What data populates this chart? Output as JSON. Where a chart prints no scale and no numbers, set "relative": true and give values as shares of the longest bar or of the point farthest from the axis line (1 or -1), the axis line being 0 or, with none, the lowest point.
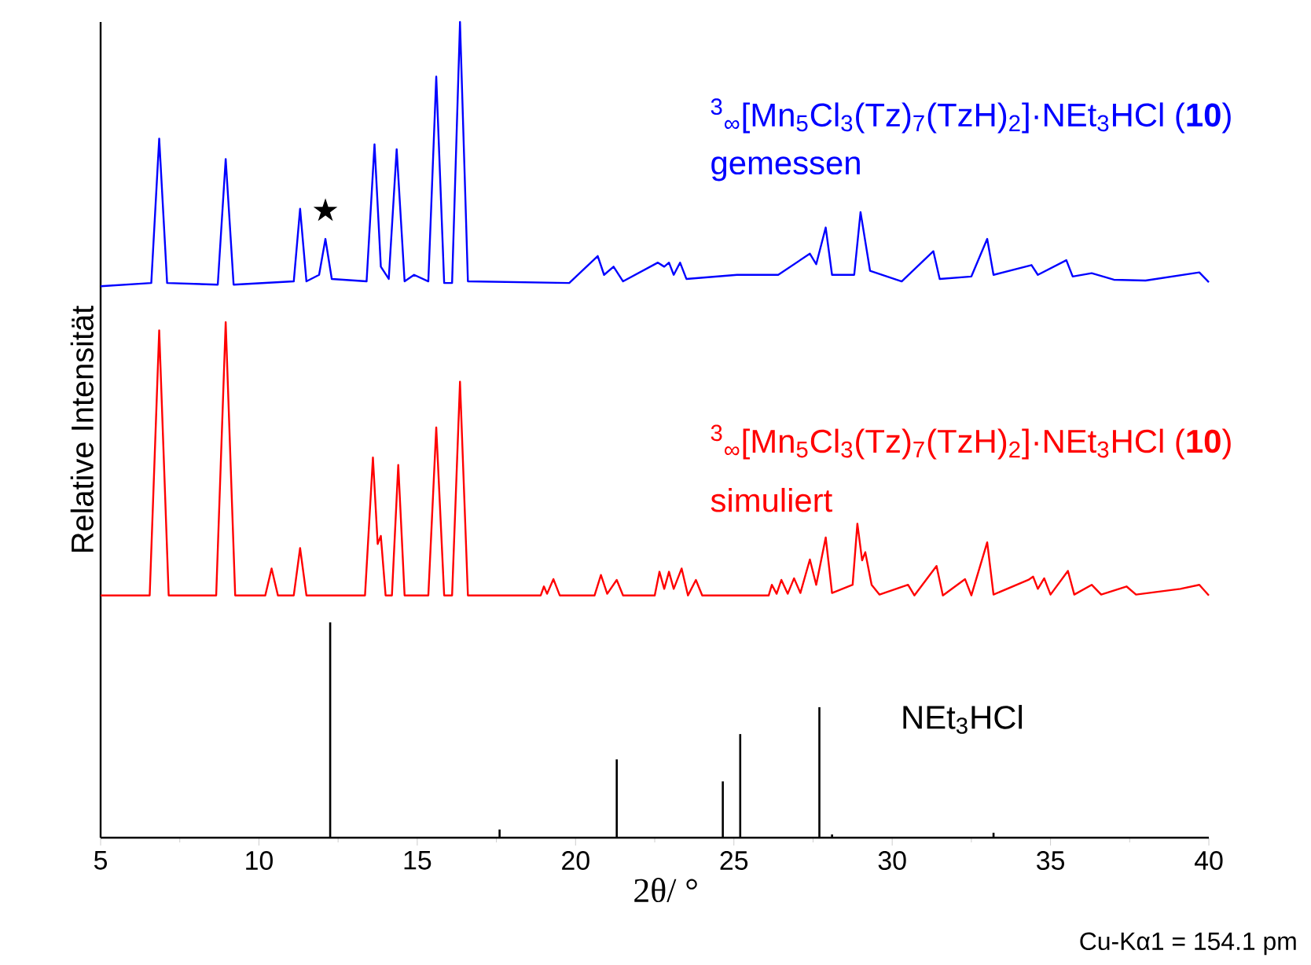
{
  "chart_data": {
    "type": "line",
    "relative": true,
    "xlabel": "2θ/ °",
    "ylabel": "Relative Intensität",
    "xlim": [
      5,
      40
    ],
    "xticks": [
      5,
      10,
      15,
      20,
      25,
      30,
      35,
      40
    ],
    "annotations": [
      "$^{3}$$_{∞}$[Mn$_{5}$Cl$_{3}$(Tz)$_{7}$(TzH)$_{2}$]·NEt$_{3}$HCl (**10**)",
      "$^{3}$$_{∞}$[Mn$_{5}$Cl$_{3}$(Tz)$_{7}$(TzH)$_{2}$]·NEt$_{3}$HCl (**10**)",
      "★",
      "Cu-Kα1 = 154.1 pm"
    ],
    "series": [
      {
        "name": "gemessen",
        "color": "#0000ff",
        "x": [
          5.0,
          6.6,
          6.85,
          7.1,
          8.7,
          8.95,
          9.2,
          11.1,
          11.3,
          11.5,
          11.9,
          12.1,
          12.3,
          13.4,
          13.65,
          13.85,
          14.1,
          14.35,
          14.6,
          14.9,
          15.35,
          15.6,
          15.85,
          16.1,
          16.35,
          16.6,
          19.8,
          20.7,
          20.9,
          21.2,
          21.5,
          22.6,
          22.8,
          22.95,
          23.1,
          23.3,
          23.5,
          25.1,
          26.4,
          27.4,
          27.6,
          27.9,
          28.1,
          28.8,
          29.0,
          29.3,
          30.3,
          31.3,
          31.5,
          32.5,
          33.0,
          33.2,
          34.4,
          34.6,
          35.5,
          35.7,
          36.3,
          37,
          38,
          39.7,
          40
        ],
        "values": [
          0.676,
          0.68,
          0.857,
          0.68,
          0.678,
          0.832,
          0.678,
          0.682,
          0.771,
          0.682,
          0.69,
          0.734,
          0.685,
          0.682,
          0.85,
          0.7,
          0.685,
          0.844,
          0.682,
          0.69,
          0.682,
          0.933,
          0.68,
          0.68,
          1.0,
          0.682,
          0.68,
          0.713,
          0.69,
          0.7,
          0.682,
          0.705,
          0.7,
          0.705,
          0.69,
          0.705,
          0.685,
          0.69,
          0.69,
          0.716,
          0.703,
          0.748,
          0.69,
          0.69,
          0.767,
          0.695,
          0.682,
          0.719,
          0.685,
          0.688,
          0.734,
          0.69,
          0.702,
          0.69,
          0.708,
          0.688,
          0.692,
          0.684,
          0.683,
          0.693,
          0.681
        ]
      },
      {
        "name": "simuliert",
        "color": "#ff0000",
        "x": [
          5,
          6.55,
          6.85,
          7.15,
          8.65,
          8.95,
          9.25,
          10.2,
          10.4,
          10.6,
          11.1,
          11.3,
          11.5,
          13.35,
          13.6,
          13.75,
          13.85,
          14.0,
          14.2,
          14.4,
          14.6,
          15.35,
          15.6,
          15.85,
          16.1,
          16.35,
          16.6,
          18.9,
          19.0,
          19.1,
          19.3,
          19.5,
          20.6,
          20.8,
          21.0,
          21.3,
          21.5,
          22.5,
          22.65,
          22.8,
          22.95,
          23.1,
          23.35,
          23.55,
          23.8,
          24.0,
          26.1,
          26.2,
          26.35,
          26.5,
          26.7,
          26.9,
          27.1,
          27.4,
          27.6,
          27.9,
          28.1,
          28.75,
          28.9,
          29.05,
          29.15,
          29.35,
          29.6,
          30.5,
          30.7,
          31.4,
          31.6,
          32.3,
          32.5,
          33.0,
          33.2,
          34.3,
          34.45,
          34.6,
          34.8,
          35.0,
          35.55,
          35.75,
          36.3,
          36.6,
          37.4,
          37.7,
          39.1,
          39.7,
          40
        ],
        "values": [
          0.297,
          0.297,
          0.622,
          0.297,
          0.297,
          0.632,
          0.297,
          0.297,
          0.33,
          0.297,
          0.297,
          0.355,
          0.297,
          0.297,
          0.466,
          0.36,
          0.37,
          0.297,
          0.297,
          0.457,
          0.297,
          0.297,
          0.503,
          0.297,
          0.297,
          0.559,
          0.297,
          0.297,
          0.308,
          0.299,
          0.317,
          0.297,
          0.297,
          0.322,
          0.299,
          0.316,
          0.297,
          0.297,
          0.326,
          0.305,
          0.326,
          0.305,
          0.33,
          0.297,
          0.316,
          0.297,
          0.297,
          0.31,
          0.299,
          0.316,
          0.299,
          0.318,
          0.3,
          0.341,
          0.31,
          0.368,
          0.3,
          0.31,
          0.385,
          0.34,
          0.35,
          0.31,
          0.298,
          0.31,
          0.297,
          0.333,
          0.297,
          0.317,
          0.297,
          0.362,
          0.298,
          0.316,
          0.32,
          0.305,
          0.318,
          0.298,
          0.327,
          0.298,
          0.31,
          0.298,
          0.308,
          0.298,
          0.305,
          0.31,
          0.297
        ]
      },
      {
        "name": "NEt$_{3}$HCl",
        "type": "bar",
        "color": "#000000",
        "x": [
          12.25,
          17.6,
          21.3,
          24.65,
          25.2,
          27.7,
          28.1,
          33.2
        ],
        "values": [
          0.264,
          0.01,
          0.096,
          0.069,
          0.127,
          0.16,
          0.004,
          0.006
        ]
      }
    ]
  }
}
